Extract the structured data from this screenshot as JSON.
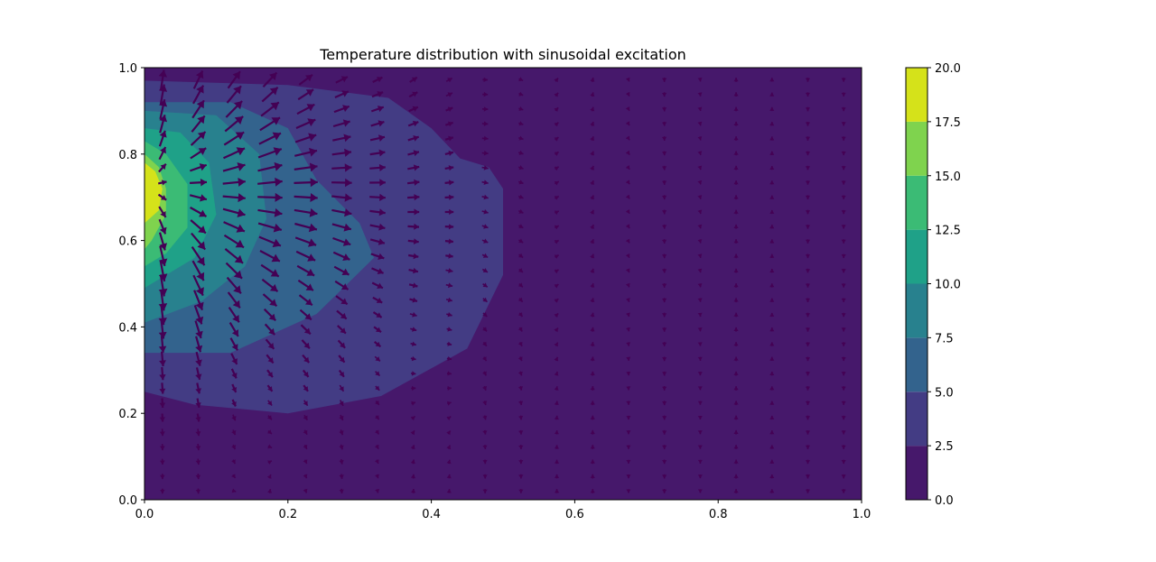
{
  "chart_data": {
    "type": "heatmap",
    "subtype": "filled-contour-with-quiver",
    "title": "Temperature distribution with sinusoidal excitation",
    "xlabel": "",
    "ylabel": "",
    "xlim": [
      0.0,
      1.0
    ],
    "ylim": [
      0.0,
      1.0
    ],
    "x_ticks": [
      "0.0",
      "0.2",
      "0.4",
      "0.6",
      "0.8",
      "1.0"
    ],
    "y_ticks": [
      "0.0",
      "0.2",
      "0.4",
      "0.6",
      "0.8",
      "1.0"
    ],
    "grid": false,
    "colormap": "viridis",
    "colorbar": {
      "range": [
        0.0,
        20.0
      ],
      "levels": [
        0.0,
        2.5,
        5.0,
        7.5,
        10.0,
        12.5,
        15.0,
        17.5,
        20.0
      ],
      "tick_labels": [
        "0.0",
        "2.5",
        "5.0",
        "7.5",
        "10.0",
        "12.5",
        "15.0",
        "17.5",
        "20.0"
      ],
      "colors": [
        "#46186b",
        "#433c84",
        "#33638d",
        "#28818e",
        "#1fa188",
        "#3bbb75",
        "#7fd34e",
        "#d5e21a"
      ]
    },
    "contour_regions": [
      {
        "level_min": 2.5,
        "boundary": [
          [
            0.0,
            0.97
          ],
          [
            0.2,
            0.96
          ],
          [
            0.34,
            0.93
          ],
          [
            0.4,
            0.86
          ],
          [
            0.44,
            0.79
          ],
          [
            0.48,
            0.77
          ],
          [
            0.5,
            0.72
          ],
          [
            0.5,
            0.52
          ],
          [
            0.45,
            0.35
          ],
          [
            0.33,
            0.24
          ],
          [
            0.2,
            0.2
          ],
          [
            0.07,
            0.22
          ],
          [
            0.0,
            0.25
          ]
        ]
      },
      {
        "level_min": 5.0,
        "boundary": [
          [
            0.0,
            0.92
          ],
          [
            0.12,
            0.92
          ],
          [
            0.2,
            0.86
          ],
          [
            0.24,
            0.74
          ],
          [
            0.3,
            0.64
          ],
          [
            0.32,
            0.56
          ],
          [
            0.24,
            0.43
          ],
          [
            0.12,
            0.34
          ],
          [
            0.0,
            0.34
          ]
        ]
      },
      {
        "level_min": 7.5,
        "boundary": [
          [
            0.0,
            0.9
          ],
          [
            0.1,
            0.89
          ],
          [
            0.16,
            0.8
          ],
          [
            0.17,
            0.65
          ],
          [
            0.14,
            0.54
          ],
          [
            0.08,
            0.46
          ],
          [
            0.0,
            0.41
          ]
        ]
      },
      {
        "level_min": 10.0,
        "boundary": [
          [
            0.0,
            0.86
          ],
          [
            0.05,
            0.85
          ],
          [
            0.09,
            0.78
          ],
          [
            0.1,
            0.66
          ],
          [
            0.07,
            0.56
          ],
          [
            0.0,
            0.49
          ]
        ]
      },
      {
        "level_min": 12.5,
        "boundary": [
          [
            0.0,
            0.83
          ],
          [
            0.03,
            0.8
          ],
          [
            0.06,
            0.73
          ],
          [
            0.06,
            0.63
          ],
          [
            0.03,
            0.57
          ],
          [
            0.0,
            0.54
          ]
        ]
      },
      {
        "level_min": 15.0,
        "boundary": [
          [
            0.0,
            0.8
          ],
          [
            0.02,
            0.77
          ],
          [
            0.03,
            0.72
          ],
          [
            0.03,
            0.66
          ],
          [
            0.01,
            0.6
          ],
          [
            0.0,
            0.58
          ]
        ]
      },
      {
        "level_min": 17.5,
        "boundary": [
          [
            0.0,
            0.78
          ],
          [
            0.015,
            0.76
          ],
          [
            0.025,
            0.72
          ],
          [
            0.02,
            0.67
          ],
          [
            0.0,
            0.64
          ]
        ]
      }
    ],
    "quiver": {
      "color": "#440154",
      "x_spacing": 0.05,
      "y_spacing": 0.034,
      "field": "heat flux (negative temperature gradient)"
    }
  }
}
